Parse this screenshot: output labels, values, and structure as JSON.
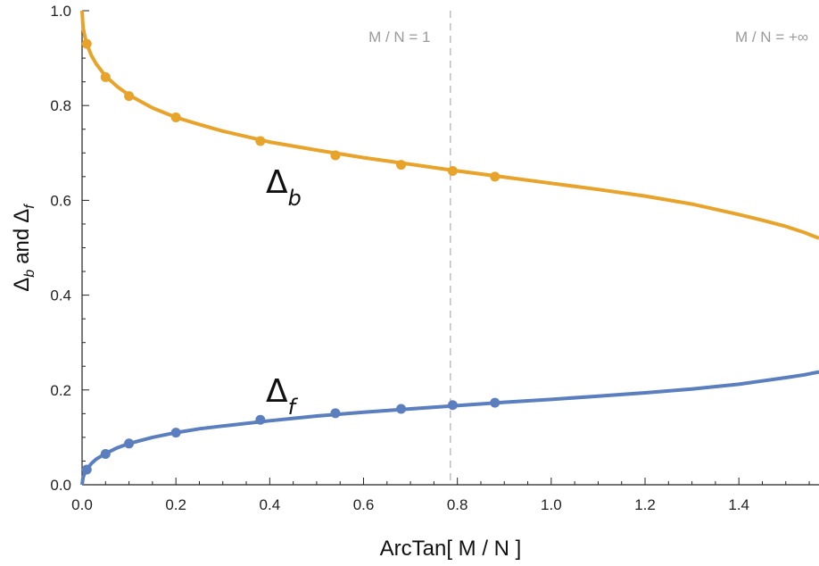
{
  "chart_data": {
    "type": "line",
    "xlabel": "ArcTan[ M / N ]",
    "ylabel": {
      "text": "and",
      "sym1": "Δ",
      "sub1": "b",
      "sym2": "Δ",
      "sub2": "f"
    },
    "xlim": [
      0,
      1.5708
    ],
    "ylim": [
      0,
      1.0
    ],
    "x_ticks": [
      0.0,
      0.2,
      0.4,
      0.6,
      0.8,
      1.0,
      1.2,
      1.4
    ],
    "x_tick_labels": [
      "0.0",
      "0.2",
      "0.4",
      "0.6",
      "0.8",
      "1.0",
      "1.2",
      "1.4"
    ],
    "y_ticks": [
      0.0,
      0.2,
      0.4,
      0.6,
      0.8,
      1.0
    ],
    "y_tick_labels": [
      "0.0",
      "0.2",
      "0.4",
      "0.6",
      "0.8",
      "1.0"
    ],
    "reference_lines": [
      {
        "x": 0.785,
        "label": "M / N = 1",
        "style": "dashed"
      }
    ],
    "annotations": [
      {
        "text": "M / N = +∞",
        "at": "top-right"
      }
    ],
    "series": [
      {
        "name": "Δb",
        "label_symbol": "Δ",
        "label_sub": "b",
        "color": "#E8A32A",
        "curve": {
          "x": [
            0.0,
            0.002,
            0.005,
            0.01,
            0.02,
            0.03,
            0.05,
            0.075,
            0.1,
            0.15,
            0.2,
            0.25,
            0.3,
            0.4,
            0.5,
            0.6,
            0.7,
            0.785,
            0.9,
            1.0,
            1.1,
            1.2,
            1.3,
            1.4,
            1.45,
            1.5,
            1.54,
            1.5708
          ],
          "y": [
            1.0,
            0.965,
            0.95,
            0.93,
            0.905,
            0.888,
            0.862,
            0.84,
            0.822,
            0.795,
            0.775,
            0.76,
            0.746,
            0.723,
            0.706,
            0.69,
            0.676,
            0.664,
            0.649,
            0.636,
            0.623,
            0.609,
            0.592,
            0.57,
            0.558,
            0.545,
            0.532,
            0.52
          ]
        },
        "points": {
          "x": [
            0.01,
            0.05,
            0.1,
            0.2,
            0.38,
            0.54,
            0.68,
            0.79,
            0.88
          ],
          "y": [
            0.93,
            0.86,
            0.82,
            0.775,
            0.725,
            0.695,
            0.675,
            0.662,
            0.65
          ]
        }
      },
      {
        "name": "Δf",
        "label_symbol": "Δ",
        "label_sub": "f",
        "color": "#5B7FBE",
        "curve": {
          "x": [
            0.0,
            0.002,
            0.005,
            0.01,
            0.02,
            0.03,
            0.05,
            0.075,
            0.1,
            0.15,
            0.2,
            0.25,
            0.3,
            0.4,
            0.5,
            0.6,
            0.7,
            0.785,
            0.9,
            1.0,
            1.1,
            1.2,
            1.3,
            1.4,
            1.45,
            1.5,
            1.54,
            1.5708
          ],
          "y": [
            0.0,
            0.015,
            0.023,
            0.032,
            0.045,
            0.054,
            0.066,
            0.078,
            0.087,
            0.1,
            0.11,
            0.118,
            0.124,
            0.135,
            0.145,
            0.153,
            0.16,
            0.166,
            0.174,
            0.18,
            0.187,
            0.194,
            0.202,
            0.212,
            0.219,
            0.226,
            0.232,
            0.238
          ]
        },
        "points": {
          "x": [
            0.01,
            0.05,
            0.1,
            0.2,
            0.38,
            0.54,
            0.68,
            0.79,
            0.88
          ],
          "y": [
            0.032,
            0.065,
            0.087,
            0.11,
            0.137,
            0.151,
            0.16,
            0.168,
            0.173
          ]
        }
      }
    ]
  }
}
